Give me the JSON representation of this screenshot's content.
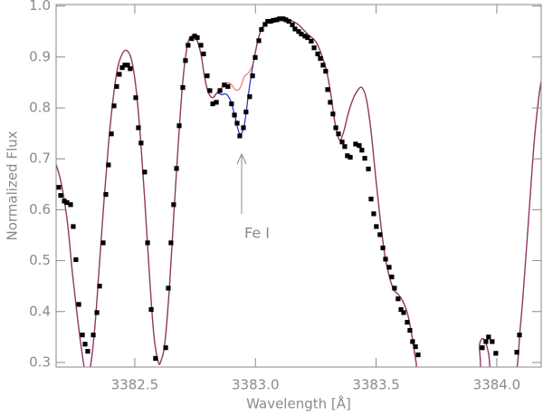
{
  "chart_data": {
    "type": "scatter",
    "xlabel": "Wavelength [Å]",
    "ylabel": "Normalized Flux",
    "annotation": "Fe I",
    "xlim": [
      3382.174,
      3384.184
    ],
    "ylim": [
      0.291,
      1.003
    ],
    "xticks": [
      {
        "value": 3382.5,
        "label": "3382.5"
      },
      {
        "value": 3383.0,
        "label": "3383.0"
      },
      {
        "value": 3383.5,
        "label": "3383.5"
      },
      {
        "value": 3384.0,
        "label": "3384.0"
      }
    ],
    "yticks": [
      0.3,
      0.4,
      0.5,
      0.6,
      0.7,
      0.8,
      0.9,
      {
        "value": 1,
        "label": "1.0"
      }
    ],
    "series": [
      {
        "style": "markers",
        "color": "#000000",
        "x": [
          3382.185,
          3382.193,
          3382.208,
          3382.219,
          3382.234,
          3382.245,
          3382.256,
          3382.268,
          3382.283,
          3382.294,
          3382.305,
          3382.328,
          3382.343,
          3382.354,
          3382.369,
          3382.38,
          3382.391,
          3382.403,
          3382.414,
          3382.425,
          3382.436,
          3382.448,
          3382.459,
          3382.47,
          3382.481,
          3382.504,
          3382.515,
          3382.526,
          3382.541,
          3382.553,
          3382.568,
          3382.586,
          3382.628,
          3382.639,
          3382.65,
          3382.661,
          3382.673,
          3382.684,
          3382.699,
          3382.71,
          3382.721,
          3382.736,
          3382.748,
          3382.759,
          3382.774,
          3382.785,
          3382.8,
          3382.811,
          3382.823,
          3382.838,
          3382.853,
          3382.871,
          3382.886,
          3382.901,
          3382.913,
          3382.924,
          3382.935,
          3382.95,
          3382.961,
          3382.976,
          3382.988,
          3382.999,
          3383.014,
          3383.025,
          3383.04,
          3383.051,
          3383.063,
          3383.074,
          3383.089,
          3383.1,
          3383.115,
          3383.126,
          3383.138,
          3383.153,
          3383.164,
          3383.179,
          3383.19,
          3383.205,
          3383.216,
          3383.231,
          3383.243,
          3383.258,
          3383.269,
          3383.28,
          3383.291,
          3383.299,
          3383.31,
          3383.321,
          3383.333,
          3383.344,
          3383.359,
          3383.37,
          3383.381,
          3383.393,
          3383.415,
          3383.43,
          3383.441,
          3383.453,
          3383.468,
          3383.479,
          3383.49,
          3383.501,
          3383.516,
          3383.528,
          3383.539,
          3383.554,
          3383.565,
          3383.576,
          3383.591,
          3383.603,
          3383.614,
          3383.629,
          3383.64,
          3383.651,
          3383.663,
          3383.674,
          3383.94,
          3383.955,
          3383.966,
          3383.981,
          3383.996,
          3384.083,
          3384.094
        ],
        "values": [
          0.644,
          0.628,
          0.617,
          0.614,
          0.61,
          0.567,
          0.502,
          0.414,
          0.354,
          0.336,
          0.322,
          0.354,
          0.398,
          0.45,
          0.535,
          0.63,
          0.688,
          0.749,
          0.804,
          0.842,
          0.866,
          0.879,
          0.884,
          0.884,
          0.877,
          0.82,
          0.761,
          0.731,
          0.674,
          0.535,
          0.404,
          0.308,
          0.329,
          0.446,
          0.535,
          0.61,
          0.681,
          0.765,
          0.84,
          0.893,
          0.923,
          0.936,
          0.941,
          0.938,
          0.923,
          0.906,
          0.863,
          0.834,
          0.808,
          0.811,
          0.834,
          0.845,
          0.842,
          0.808,
          0.786,
          0.77,
          0.745,
          0.761,
          0.792,
          0.822,
          0.863,
          0.899,
          0.932,
          0.954,
          0.964,
          0.97,
          0.97,
          0.972,
          0.973,
          0.975,
          0.975,
          0.973,
          0.97,
          0.963,
          0.955,
          0.95,
          0.945,
          0.941,
          0.938,
          0.931,
          0.918,
          0.906,
          0.897,
          0.884,
          0.872,
          0.836,
          0.811,
          0.788,
          0.761,
          0.749,
          0.733,
          0.724,
          0.706,
          0.703,
          0.729,
          0.726,
          0.717,
          0.701,
          0.68,
          0.621,
          0.592,
          0.567,
          0.551,
          0.525,
          0.503,
          0.487,
          0.468,
          0.446,
          0.425,
          0.404,
          0.398,
          0.379,
          0.363,
          0.341,
          0.331,
          0.315,
          0.329,
          0.341,
          0.35,
          0.341,
          0.318,
          0.32,
          0.354
        ]
      },
      {
        "style": "line",
        "color": "#2b3cc4",
        "x": [
          3382.174,
          3382.189,
          3382.204,
          3382.223,
          3382.241,
          3382.26,
          3382.279,
          3382.298,
          3382.316,
          3382.335,
          3382.354,
          3382.373,
          3382.391,
          3382.41,
          3382.429,
          3382.448,
          3382.466,
          3382.485,
          3382.504,
          3382.523,
          3382.541,
          3382.56,
          3382.579,
          3382.598,
          3382.609,
          3382.624,
          3382.643,
          3382.661,
          3382.68,
          3382.699,
          3382.718,
          3382.736,
          3382.755,
          3382.774,
          3382.789,
          3382.804,
          3382.823,
          3382.841,
          3382.86,
          3382.879,
          3382.898,
          3382.916,
          3382.935,
          3382.954,
          3382.973,
          3382.991,
          3383.01,
          3383.029,
          3383.066,
          3383.104,
          3383.141,
          3383.179,
          3383.216,
          3383.254,
          3383.291,
          3383.31,
          3383.329,
          3383.348,
          3383.366,
          3383.385,
          3383.404,
          3383.423,
          3383.441,
          3383.46,
          3383.479,
          3383.498,
          3383.516,
          3383.535,
          3383.554,
          3383.573,
          3383.591,
          3383.61,
          3383.629,
          3383.648,
          3383.666,
          3383.685,
          3383.91,
          3383.929,
          3383.948,
          3383.966,
          3383.985,
          3384.071,
          3384.098,
          3384.116,
          3384.135,
          3384.154,
          3384.173,
          3384.184
        ],
        "values": [
          0.689,
          0.665,
          0.63,
          0.567,
          0.478,
          0.398,
          0.327,
          0.274,
          0.292,
          0.372,
          0.496,
          0.621,
          0.728,
          0.817,
          0.879,
          0.906,
          0.913,
          0.897,
          0.843,
          0.745,
          0.621,
          0.478,
          0.354,
          0.3,
          0.304,
          0.336,
          0.443,
          0.585,
          0.728,
          0.852,
          0.923,
          0.941,
          0.936,
          0.906,
          0.861,
          0.831,
          0.82,
          0.829,
          0.826,
          0.827,
          0.813,
          0.781,
          0.749,
          0.767,
          0.834,
          0.888,
          0.932,
          0.959,
          0.973,
          0.977,
          0.973,
          0.963,
          0.945,
          0.927,
          0.879,
          0.834,
          0.772,
          0.737,
          0.754,
          0.79,
          0.817,
          0.834,
          0.84,
          0.817,
          0.754,
          0.665,
          0.585,
          0.514,
          0.47,
          0.443,
          0.434,
          0.421,
          0.398,
          0.354,
          0.3,
          0.265,
          0.265,
          0.336,
          0.345,
          0.318,
          0.265,
          0.265,
          0.372,
          0.478,
          0.603,
          0.728,
          0.817,
          0.852
        ]
      },
      {
        "style": "line",
        "color": "#e0301e",
        "x": [
          3382.174,
          3382.189,
          3382.204,
          3382.223,
          3382.241,
          3382.26,
          3382.279,
          3382.298,
          3382.316,
          3382.335,
          3382.354,
          3382.373,
          3382.391,
          3382.41,
          3382.429,
          3382.448,
          3382.466,
          3382.485,
          3382.504,
          3382.523,
          3382.541,
          3382.56,
          3382.579,
          3382.598,
          3382.609,
          3382.624,
          3382.643,
          3382.661,
          3382.68,
          3382.699,
          3382.718,
          3382.736,
          3382.755,
          3382.774,
          3382.789,
          3382.804,
          3382.823,
          3382.841,
          3382.86,
          3382.879,
          3382.898,
          3382.916,
          3382.935,
          3382.954,
          3382.973,
          3382.991,
          3383.01,
          3383.029,
          3383.066,
          3383.104,
          3383.141,
          3383.179,
          3383.216,
          3383.254,
          3383.291,
          3383.31,
          3383.329,
          3383.348,
          3383.366,
          3383.385,
          3383.404,
          3383.423,
          3383.441,
          3383.46,
          3383.479,
          3383.498,
          3383.516,
          3383.535,
          3383.554,
          3383.573,
          3383.591,
          3383.61,
          3383.629,
          3383.648,
          3383.666,
          3383.685,
          3383.91,
          3383.929,
          3383.948,
          3383.966,
          3383.985,
          3384.071,
          3384.098,
          3384.116,
          3384.135,
          3384.154,
          3384.173,
          3384.184
        ],
        "values": [
          0.689,
          0.665,
          0.63,
          0.567,
          0.478,
          0.398,
          0.327,
          0.274,
          0.292,
          0.372,
          0.496,
          0.621,
          0.728,
          0.817,
          0.879,
          0.906,
          0.913,
          0.897,
          0.843,
          0.745,
          0.621,
          0.478,
          0.354,
          0.3,
          0.304,
          0.336,
          0.443,
          0.585,
          0.728,
          0.852,
          0.923,
          0.941,
          0.936,
          0.906,
          0.861,
          0.831,
          0.82,
          0.831,
          0.84,
          0.849,
          0.847,
          0.836,
          0.838,
          0.861,
          0.87,
          0.888,
          0.932,
          0.959,
          0.973,
          0.977,
          0.973,
          0.963,
          0.945,
          0.927,
          0.879,
          0.834,
          0.772,
          0.737,
          0.754,
          0.79,
          0.817,
          0.834,
          0.84,
          0.817,
          0.754,
          0.665,
          0.585,
          0.514,
          0.47,
          0.443,
          0.434,
          0.421,
          0.398,
          0.354,
          0.3,
          0.265,
          0.265,
          0.336,
          0.345,
          0.318,
          0.265,
          0.265,
          0.372,
          0.478,
          0.603,
          0.728,
          0.817,
          0.852
        ]
      }
    ]
  }
}
